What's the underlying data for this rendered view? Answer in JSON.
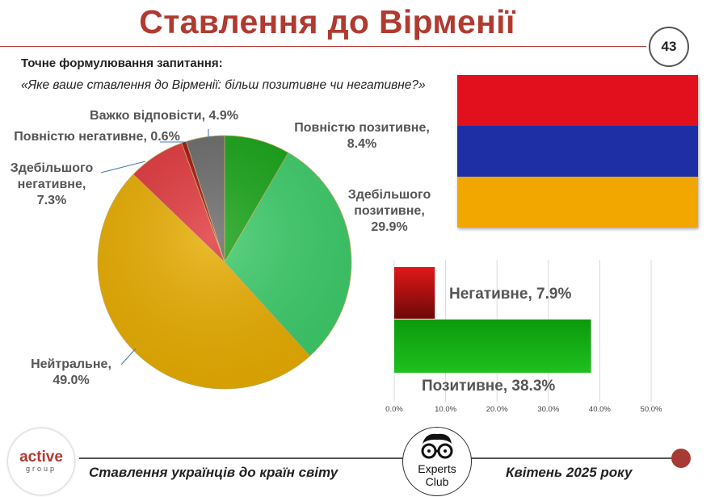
{
  "title": "Ставлення до Вірменії",
  "page_number": "43",
  "question": {
    "label": "Точне формулювання запитання:",
    "text": "«Яке ваше ставлення до Вірменії: більш позитивне чи негативне?»"
  },
  "flag": {
    "colors": [
      "#e2101c",
      "#1e2fa6",
      "#f2a600"
    ]
  },
  "chart_data": [
    {
      "type": "pie",
      "slices": [
        {
          "label_lines": [
            "Повністю позитивне,",
            "8.4%"
          ],
          "value": 8.4,
          "color": "#16a316"
        },
        {
          "label_lines": [
            "Здебільшого",
            "позитивне,",
            "29.9%"
          ],
          "value": 29.9,
          "color": "#3dcc6a"
        },
        {
          "label_lines": [
            "Нейтральне,",
            "49.0%"
          ],
          "value": 49.0,
          "color": "#e8ad00"
        },
        {
          "label_lines": [
            "Здебільшого",
            "негативне,",
            "7.3%"
          ],
          "value": 7.3,
          "color": "#e0373c"
        },
        {
          "label_lines": [
            "Повністю негативне, 0.6%"
          ],
          "value": 0.6,
          "color": "#a51010"
        },
        {
          "label_lines": [
            "Важко відповісти, 4.9%"
          ],
          "value": 4.9,
          "color": "#6a6a6a"
        }
      ]
    },
    {
      "type": "bar",
      "orientation": "horizontal",
      "categories": [
        "Негативне, 7.9%",
        "Позитивне, 38.3%"
      ],
      "values": [
        7.9,
        38.3
      ],
      "colors": [
        "#c50f0f",
        "#14a314"
      ],
      "xlim": [
        0,
        50
      ],
      "x_ticks": [
        "0.0%",
        "10.0%",
        "20.0%",
        "30.0%",
        "40.0%",
        "50.0%"
      ],
      "grid": true
    }
  ],
  "footer": {
    "left_logo_top": "active",
    "left_logo_bottom": "group",
    "left_text": "Ставлення українців до країн світу",
    "center_logo_line1": "Experts",
    "center_logo_line2": "Club",
    "right_text": "Квітень 2025 року"
  }
}
